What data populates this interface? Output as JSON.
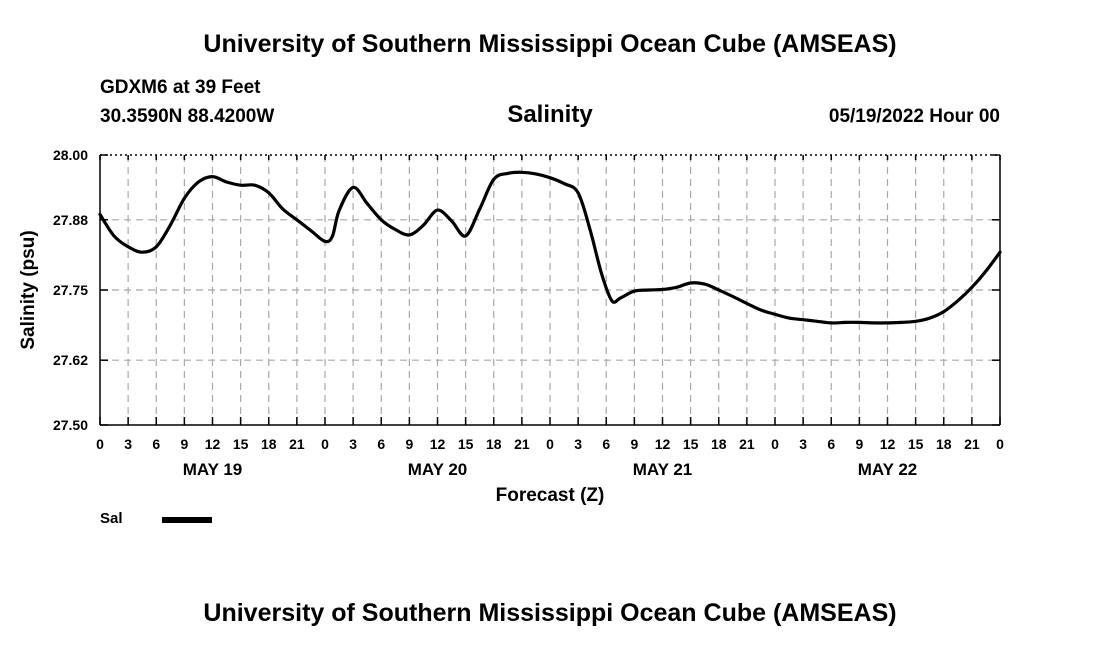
{
  "header": {
    "top_title": "University of Southern Mississippi Ocean Cube (AMSEAS)",
    "bottom_title": "University of Southern Mississippi Ocean Cube (AMSEAS)",
    "station": "GDXM6 at 39 Feet",
    "coords": "30.3590N  88.4200W",
    "run_time": "05/19/2022 Hour 00"
  },
  "chart_data": {
    "type": "line",
    "title": "Salinity",
    "xlabel": "Forecast (Z)",
    "ylabel": "Salinity (psu)",
    "ylim": [
      27.5,
      28.0
    ],
    "xlim": [
      0,
      96
    ],
    "y_ticks": [
      "28.00",
      "27.88",
      "27.75",
      "27.62",
      "27.50"
    ],
    "x_ticks": [
      "0",
      "3",
      "6",
      "9",
      "12",
      "15",
      "18",
      "21",
      "0",
      "3",
      "6",
      "9",
      "12",
      "15",
      "18",
      "21",
      "0",
      "3",
      "6",
      "9",
      "12",
      "15",
      "18",
      "21",
      "0",
      "3",
      "6",
      "9",
      "12",
      "15",
      "18",
      "21",
      "0"
    ],
    "day_labels": [
      "MAY 19",
      "MAY 20",
      "MAY 21",
      "MAY 22"
    ],
    "grid": true,
    "series": [
      {
        "name": "Sal",
        "x": [
          0,
          1.5,
          3,
          4.5,
          6,
          7.5,
          9,
          10.5,
          12,
          13.5,
          15,
          16.5,
          18,
          19.5,
          21,
          22.5,
          24,
          24.8,
          25.5,
          27,
          28.5,
          30,
          31.5,
          33,
          34.5,
          36,
          37.5,
          39,
          40.5,
          42,
          43.5,
          45,
          46.5,
          48,
          49.5,
          51,
          52.3,
          53.5,
          54.6,
          55.5,
          57,
          58.5,
          60,
          61.5,
          63,
          64.5,
          66,
          67.5,
          69,
          70.5,
          72,
          73.5,
          75,
          76.5,
          78,
          79.5,
          81,
          82.5,
          84,
          85.5,
          87,
          88.5,
          90,
          91.5,
          93,
          94.5,
          96
        ],
        "values": [
          27.89,
          27.85,
          27.83,
          27.82,
          27.83,
          27.87,
          27.92,
          27.95,
          27.96,
          27.95,
          27.944,
          27.944,
          27.93,
          27.9,
          27.88,
          27.86,
          27.84,
          27.85,
          27.897,
          27.94,
          27.91,
          27.88,
          27.862,
          27.852,
          27.87,
          27.898,
          27.878,
          27.85,
          27.9,
          27.955,
          27.966,
          27.968,
          27.965,
          27.958,
          27.947,
          27.93,
          27.86,
          27.78,
          27.73,
          27.735,
          27.748,
          27.75,
          27.751,
          27.755,
          27.763,
          27.761,
          27.75,
          27.738,
          27.725,
          27.713,
          27.705,
          27.698,
          27.695,
          27.692,
          27.689,
          27.69,
          27.69,
          27.689,
          27.689,
          27.69,
          27.692,
          27.698,
          27.71,
          27.73,
          27.755,
          27.785,
          27.82
        ]
      }
    ],
    "legend": {
      "position": "bottom-left",
      "entries": [
        "Sal"
      ]
    }
  }
}
